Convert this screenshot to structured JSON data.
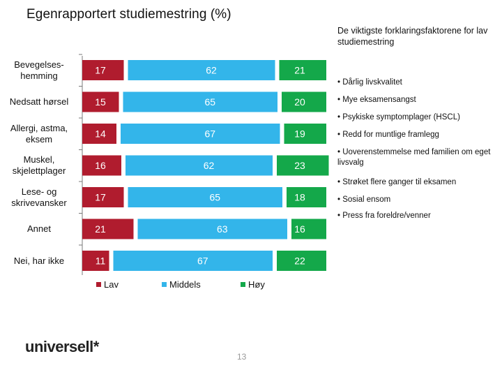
{
  "title": "Egenrapportert studiemestring (%)",
  "side_panel": {
    "title": "De viktigste forklaringsfaktorene for lav studiemestring",
    "factors": [
      "• Dårlig livskvalitet",
      "• Mye eksamensangst",
      "• Psykiske symptomplager (HSCL)",
      "• Redd for muntlige framlegg",
      "• Uoverenstemmelse med familien om eget livsvalg",
      "• Strøket flere ganger til eksamen",
      "• Sosial ensom",
      "• Press fra foreldre/venner"
    ]
  },
  "colors": {
    "lav": "#b01c2e",
    "middels": "#33b5ea",
    "hoy": "#14a84a"
  },
  "chart_data": {
    "type": "bar",
    "orientation": "horizontal",
    "stacked": true,
    "title": "Egenrapportert studiemestring (%)",
    "categories": [
      "Bevegelses-hemming",
      "Nedsatt hørsel",
      "Allergi, astma, eksem",
      "Muskel, skjelettplager",
      "Lese- og skrivevansker",
      "Annet",
      "Nei, har ikke"
    ],
    "series": [
      {
        "name": "Lav",
        "values": [
          17,
          15,
          14,
          16,
          17,
          21,
          11
        ]
      },
      {
        "name": "Middels",
        "values": [
          62,
          65,
          67,
          62,
          65,
          63,
          67
        ]
      },
      {
        "name": "Høy",
        "values": [
          21,
          20,
          19,
          23,
          18,
          16,
          22
        ]
      }
    ],
    "xlim": [
      0,
      100
    ],
    "legend_position": "bottom",
    "grid": false
  },
  "logo_text": "universell*",
  "page_number": "13"
}
